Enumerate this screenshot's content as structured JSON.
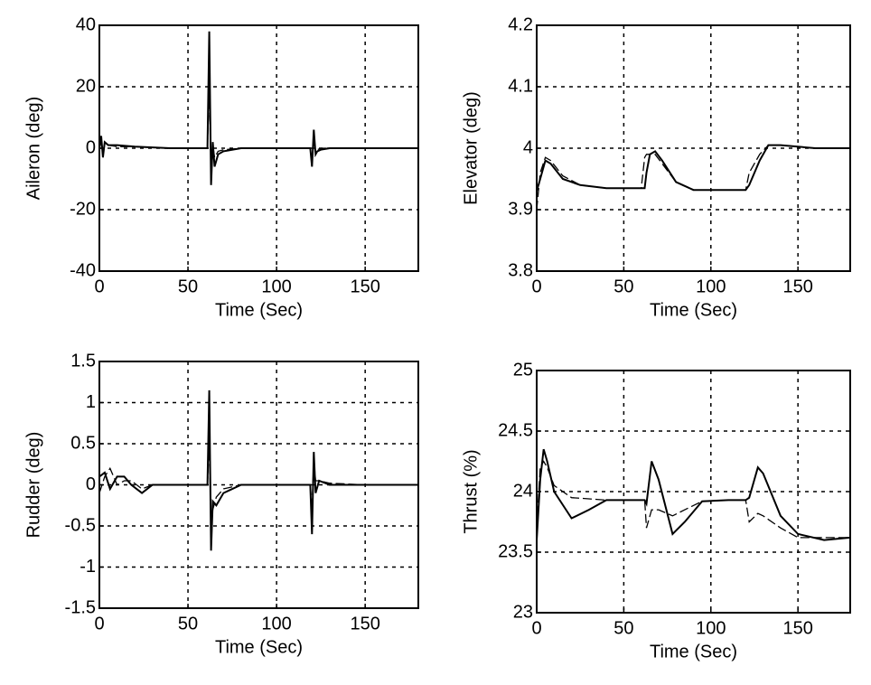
{
  "chart_data": [
    {
      "type": "line",
      "xlabel": "Time (Sec)",
      "ylabel": "Aileron (deg)",
      "xlim": [
        0,
        180
      ],
      "ylim": [
        -40,
        40
      ],
      "xticks": [
        0,
        50,
        100,
        150
      ],
      "yticks": [
        -40,
        -20,
        0,
        20,
        40
      ],
      "grid": true,
      "x": [
        0,
        1,
        2,
        3,
        5,
        10,
        20,
        40,
        60,
        61,
        62,
        63,
        64,
        65,
        67,
        70,
        80,
        100,
        119,
        120,
        121,
        122,
        123,
        125,
        130,
        150,
        180
      ],
      "series": [
        {
          "color": "#000000",
          "dashed": false,
          "values": [
            0,
            4,
            -3,
            2,
            1,
            1,
            0.5,
            0,
            0,
            0,
            38,
            -12,
            2,
            -6,
            -2,
            -1,
            0,
            0,
            0,
            -6,
            6,
            -2,
            -1,
            -0.5,
            0,
            0,
            0
          ]
        },
        {
          "color": "#000000",
          "dashed": true,
          "values": [
            0,
            2,
            -1,
            1,
            1,
            0.5,
            0.5,
            0,
            0,
            0,
            20,
            -8,
            1,
            -3,
            -1,
            -0.5,
            0,
            0,
            0,
            -3,
            3,
            -1,
            -0.5,
            0,
            0,
            0,
            0
          ]
        }
      ]
    },
    {
      "type": "line",
      "xlabel": "Time (Sec)",
      "ylabel": "Elevator (deg)",
      "xlim": [
        0,
        180
      ],
      "ylim": [
        3.8,
        4.2
      ],
      "xticks": [
        0,
        50,
        100,
        150
      ],
      "yticks": [
        3.8,
        3.9,
        4,
        4.1,
        4.2
      ],
      "grid": true,
      "x": [
        0,
        2,
        5,
        8,
        15,
        25,
        40,
        60,
        62,
        63,
        65,
        68,
        72,
        80,
        90,
        110,
        120,
        122,
        128,
        133,
        140,
        160,
        180
      ],
      "series": [
        {
          "color": "#000000",
          "dashed": false,
          "values": [
            3.93,
            3.95,
            3.98,
            3.975,
            3.95,
            3.94,
            3.935,
            3.935,
            3.935,
            3.96,
            3.99,
            3.995,
            3.98,
            3.945,
            3.932,
            3.932,
            3.932,
            3.94,
            3.98,
            4.005,
            4.005,
            4.0,
            4.0
          ]
        },
        {
          "color": "#000000",
          "dashed": true,
          "values": [
            3.9,
            3.96,
            3.985,
            3.98,
            3.955,
            3.94,
            3.935,
            3.935,
            3.985,
            3.99,
            3.99,
            3.99,
            3.975,
            3.945,
            3.932,
            3.932,
            3.932,
            3.96,
            3.99,
            4.005,
            4.005,
            4.0,
            4.0
          ]
        }
      ]
    },
    {
      "type": "line",
      "xlabel": "Time (Sec)",
      "ylabel": "Rudder (deg)",
      "xlim": [
        0,
        180
      ],
      "ylim": [
        -1.5,
        1.5
      ],
      "xticks": [
        0,
        50,
        100,
        150
      ],
      "yticks": [
        -1.5,
        -1,
        -0.5,
        0,
        0.5,
        1,
        1.5
      ],
      "grid": true,
      "x": [
        0,
        3,
        6,
        10,
        14,
        18,
        24,
        30,
        40,
        60,
        61,
        62,
        63,
        64,
        66,
        70,
        80,
        100,
        119,
        120,
        121,
        122,
        124,
        130,
        150,
        180
      ],
      "series": [
        {
          "color": "#000000",
          "dashed": false,
          "values": [
            0.1,
            0.15,
            -0.05,
            0.1,
            0.1,
            0,
            -0.1,
            0,
            0,
            0,
            0,
            1.15,
            -0.8,
            -0.2,
            -0.25,
            -0.1,
            0,
            0,
            0,
            -0.6,
            0.4,
            -0.1,
            0.05,
            0,
            0,
            0
          ]
        },
        {
          "color": "#000000",
          "dashed": true,
          "values": [
            -0.1,
            0.1,
            0.2,
            0,
            0.05,
            0.05,
            -0.05,
            0,
            0,
            0,
            0,
            0.5,
            -0.5,
            -0.3,
            -0.15,
            -0.05,
            0,
            0,
            0,
            -0.3,
            0.3,
            0.05,
            0.05,
            0.02,
            0,
            0
          ]
        }
      ]
    },
    {
      "type": "line",
      "xlabel": "Time (Sec)",
      "ylabel": "Thrust (%)",
      "xlim": [
        0,
        180
      ],
      "ylim": [
        23,
        25
      ],
      "xticks": [
        0,
        50,
        100,
        150
      ],
      "yticks": [
        23,
        23.5,
        24,
        24.5,
        25
      ],
      "grid": true,
      "x": [
        0,
        2,
        4,
        6,
        10,
        20,
        30,
        40,
        55,
        62,
        63,
        66,
        70,
        78,
        85,
        95,
        110,
        120,
        122,
        127,
        130,
        140,
        150,
        165,
        180
      ],
      "series": [
        {
          "color": "#000000",
          "dashed": false,
          "values": [
            23.6,
            24.1,
            24.35,
            24.25,
            24,
            23.78,
            23.85,
            23.93,
            23.93,
            23.93,
            23.9,
            24.25,
            24.1,
            23.65,
            23.75,
            23.92,
            23.93,
            23.93,
            23.95,
            24.2,
            24.15,
            23.8,
            23.65,
            23.6,
            23.62
          ]
        },
        {
          "color": "#000000",
          "dashed": true,
          "values": [
            23.7,
            24.2,
            24.25,
            24.2,
            24.05,
            23.95,
            23.94,
            23.93,
            23.93,
            23.93,
            23.7,
            23.85,
            23.85,
            23.8,
            23.85,
            23.92,
            23.93,
            23.93,
            23.75,
            23.82,
            23.8,
            23.7,
            23.62,
            23.62,
            23.62
          ]
        }
      ]
    }
  ]
}
